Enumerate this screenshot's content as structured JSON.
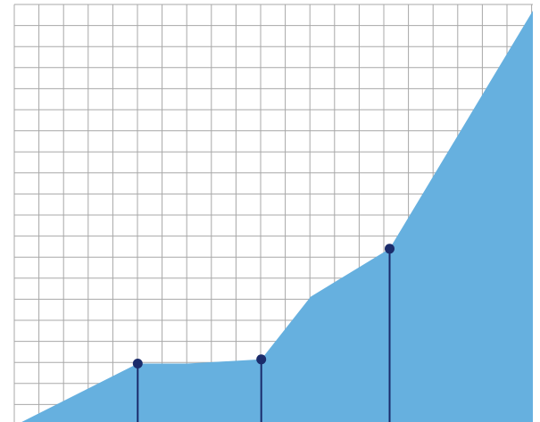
{
  "chart_data": {
    "type": "area",
    "title": "",
    "xlabel": "",
    "ylabel": "",
    "grid": true,
    "xlim": [
      0,
      21
    ],
    "ylim": [
      0,
      20
    ],
    "series": [
      {
        "values": [
          {
            "x": 0.3,
            "y": 0
          },
          {
            "x": 5,
            "y": 2.8
          },
          {
            "x": 7,
            "y": 2.8
          },
          {
            "x": 10,
            "y": 3.0
          },
          {
            "x": 12,
            "y": 6.0
          },
          {
            "x": 15.2,
            "y": 8.3
          },
          {
            "x": 21,
            "y": 19.7
          }
        ]
      }
    ],
    "markers": [
      {
        "x": 5,
        "y": 2.8
      },
      {
        "x": 10,
        "y": 3.0
      },
      {
        "x": 15.2,
        "y": 8.3
      }
    ],
    "colors": {
      "area": "#66b0df",
      "marker": "#1b2c6b",
      "grid": "#a8a8a8"
    }
  }
}
